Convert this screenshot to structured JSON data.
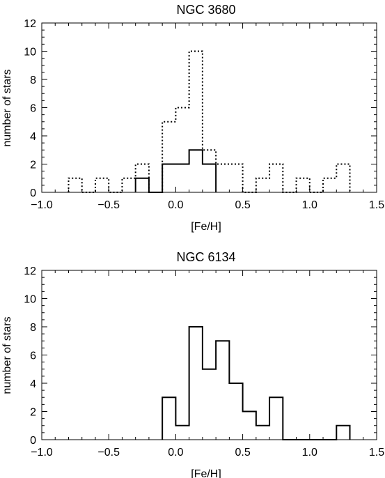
{
  "chart_data": [
    {
      "type": "histogram",
      "title": "NGC 3680",
      "xlabel": "[Fe/H]",
      "ylabel": "number of stars",
      "xlim": [
        -1.0,
        1.5
      ],
      "ylim": [
        0,
        12
      ],
      "x_ticks": [
        "−1.0",
        "−0.5",
        "0.0",
        "0.5",
        "1.0",
        "1.5"
      ],
      "y_ticks": [
        "0",
        "2",
        "4",
        "6",
        "8",
        "10",
        "12"
      ],
      "bin_width": 0.1,
      "series": [
        {
          "style": "dotted",
          "bins": [
            {
              "x0": -0.8,
              "x1": -0.7,
              "count": 1
            },
            {
              "x0": -0.7,
              "x1": -0.6,
              "count": 0
            },
            {
              "x0": -0.6,
              "x1": -0.5,
              "count": 1
            },
            {
              "x0": -0.5,
              "x1": -0.4,
              "count": 0
            },
            {
              "x0": -0.4,
              "x1": -0.3,
              "count": 1
            },
            {
              "x0": -0.3,
              "x1": -0.2,
              "count": 2
            },
            {
              "x0": -0.2,
              "x1": -0.1,
              "count": 0
            },
            {
              "x0": -0.1,
              "x1": 0.0,
              "count": 5
            },
            {
              "x0": 0.0,
              "x1": 0.1,
              "count": 6
            },
            {
              "x0": 0.1,
              "x1": 0.2,
              "count": 10
            },
            {
              "x0": 0.2,
              "x1": 0.3,
              "count": 3
            },
            {
              "x0": 0.3,
              "x1": 0.4,
              "count": 2
            },
            {
              "x0": 0.4,
              "x1": 0.5,
              "count": 2
            },
            {
              "x0": 0.5,
              "x1": 0.6,
              "count": 0
            },
            {
              "x0": 0.6,
              "x1": 0.7,
              "count": 1
            },
            {
              "x0": 0.7,
              "x1": 0.8,
              "count": 2
            },
            {
              "x0": 0.8,
              "x1": 0.9,
              "count": 0
            },
            {
              "x0": 0.9,
              "x1": 1.0,
              "count": 1
            },
            {
              "x0": 1.0,
              "x1": 1.1,
              "count": 0
            },
            {
              "x0": 1.1,
              "x1": 1.2,
              "count": 1
            },
            {
              "x0": 1.2,
              "x1": 1.3,
              "count": 2
            }
          ]
        },
        {
          "style": "solid",
          "bins": [
            {
              "x0": -0.3,
              "x1": -0.2,
              "count": 1
            },
            {
              "x0": -0.2,
              "x1": -0.1,
              "count": 0
            },
            {
              "x0": -0.1,
              "x1": 0.0,
              "count": 2
            },
            {
              "x0": 0.0,
              "x1": 0.1,
              "count": 2
            },
            {
              "x0": 0.1,
              "x1": 0.2,
              "count": 3
            },
            {
              "x0": 0.2,
              "x1": 0.3,
              "count": 2
            }
          ]
        }
      ]
    },
    {
      "type": "histogram",
      "title": "NGC 6134",
      "xlabel": "[Fe/H]",
      "ylabel": "number of stars",
      "xlim": [
        -1.0,
        1.5
      ],
      "ylim": [
        0,
        12
      ],
      "x_ticks": [
        "−1.0",
        "−0.5",
        "0.0",
        "0.5",
        "1.0",
        "1.5"
      ],
      "y_ticks": [
        "0",
        "2",
        "4",
        "6",
        "8",
        "10",
        "12"
      ],
      "bin_width": 0.1,
      "series": [
        {
          "style": "solid",
          "bins": [
            {
              "x0": -0.1,
              "x1": 0.0,
              "count": 3
            },
            {
              "x0": 0.0,
              "x1": 0.1,
              "count": 1
            },
            {
              "x0": 0.1,
              "x1": 0.2,
              "count": 8
            },
            {
              "x0": 0.2,
              "x1": 0.3,
              "count": 5
            },
            {
              "x0": 0.3,
              "x1": 0.4,
              "count": 7
            },
            {
              "x0": 0.4,
              "x1": 0.5,
              "count": 4
            },
            {
              "x0": 0.5,
              "x1": 0.6,
              "count": 2
            },
            {
              "x0": 0.6,
              "x1": 0.7,
              "count": 1
            },
            {
              "x0": 0.7,
              "x1": 0.8,
              "count": 3
            },
            {
              "x0": 0.8,
              "x1": 0.9,
              "count": 0
            },
            {
              "x0": 0.9,
              "x1": 1.0,
              "count": 0
            },
            {
              "x0": 1.0,
              "x1": 1.1,
              "count": 0
            },
            {
              "x0": 1.1,
              "x1": 1.2,
              "count": 0
            },
            {
              "x0": 1.2,
              "x1": 1.3,
              "count": 1
            }
          ]
        }
      ]
    }
  ]
}
